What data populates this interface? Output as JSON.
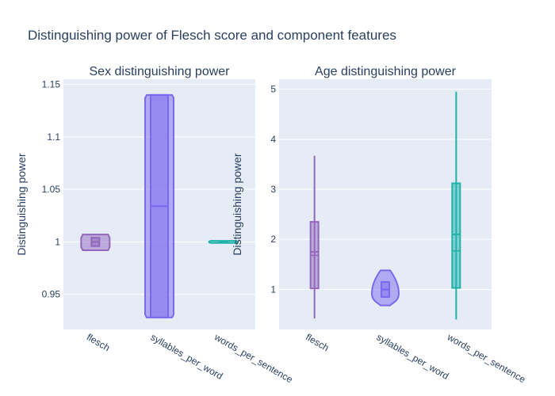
{
  "title": "Distinguishing power of Flesch score and component features",
  "colors": {
    "plot_bg": "#E5ECF6",
    "grid": "#FFFFFF",
    "text": "#2A3F5F",
    "flesch": "#9467BD",
    "syllables_per_word": "#7B68EE",
    "words_per_sentence": "#20B2AA"
  },
  "chart_data": [
    {
      "type": "violin",
      "title": "Sex distinguishing power",
      "ylabel": "Distinguishing power",
      "categories": [
        "flesch",
        "syllables_per_word",
        "words_per_sentence"
      ],
      "ylim": [
        0.9166,
        1.155
      ],
      "yticks": [
        0.95,
        1,
        1.05,
        1.1,
        1.15
      ],
      "ytick_labels": [
        "0.95",
        "1",
        "1.05",
        "1.1",
        "1.15"
      ],
      "series": [
        {
          "category": "flesch",
          "min": 0.992,
          "q1": 0.996,
          "median": 1.0,
          "mean": 1.0,
          "q3": 1.004,
          "max": 1.007,
          "shape": "flat"
        },
        {
          "category": "syllables_per_word",
          "min": 0.928,
          "q1": 0.928,
          "median": 1.034,
          "mean": 1.034,
          "q3": 1.14,
          "max": 1.14,
          "shape": "flat"
        },
        {
          "category": "words_per_sentence",
          "min": 0.999,
          "q1": 0.9995,
          "median": 1.0,
          "mean": 1.0,
          "q3": 1.0005,
          "max": 1.001,
          "shape": "flat"
        }
      ]
    },
    {
      "type": "violin",
      "title": "Age distinguishing power",
      "ylabel": "Distinguishing power",
      "categories": [
        "flesch",
        "syllables_per_word",
        "words_per_sentence"
      ],
      "ylim": [
        0.2,
        5.2
      ],
      "yticks": [
        1,
        2,
        3,
        4,
        5
      ],
      "ytick_labels": [
        "1",
        "2",
        "3",
        "4",
        "5"
      ],
      "series": [
        {
          "category": "flesch",
          "min": 0.42,
          "q1": 1.02,
          "median": 1.75,
          "mean": 1.68,
          "q3": 2.35,
          "max": 3.67,
          "shape": "thin"
        },
        {
          "category": "syllables_per_word",
          "min": 0.68,
          "q1": 0.85,
          "median": 1.0,
          "mean": 0.99,
          "q3": 1.15,
          "max": 1.38,
          "shape": "bulb"
        },
        {
          "category": "words_per_sentence",
          "min": 0.4,
          "q1": 1.03,
          "median": 2.1,
          "mean": 1.77,
          "q3": 3.12,
          "max": 4.95,
          "shape": "thin"
        }
      ]
    }
  ]
}
